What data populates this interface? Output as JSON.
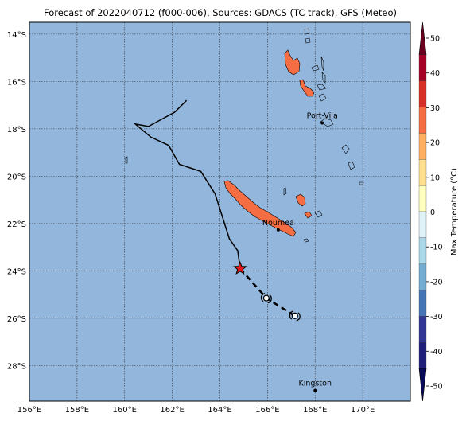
{
  "title": "Forecast of 2022040712 (f000-006), Sources: GDACS (TC track), GFS (Meteo)",
  "map": {
    "lon_range": [
      156,
      172
    ],
    "lat_range": [
      -29.5,
      -13.5
    ],
    "ocean_color": "#93b6dc",
    "gridlines": true,
    "lat_ticks": [
      {
        "value": -14,
        "label": "14°S"
      },
      {
        "value": -16,
        "label": "16°S"
      },
      {
        "value": -18,
        "label": "18°S"
      },
      {
        "value": -20,
        "label": "20°S"
      },
      {
        "value": -22,
        "label": "22°S"
      },
      {
        "value": -24,
        "label": "24°S"
      },
      {
        "value": -26,
        "label": "26°S"
      },
      {
        "value": -28,
        "label": "28°S"
      }
    ],
    "lon_ticks": [
      {
        "value": 156,
        "label": "156°E"
      },
      {
        "value": 158,
        "label": "158°E"
      },
      {
        "value": 160,
        "label": "160°E"
      },
      {
        "value": 162,
        "label": "162°E"
      },
      {
        "value": 164,
        "label": "164°E"
      },
      {
        "value": 166,
        "label": "166°E"
      },
      {
        "value": 168,
        "label": "168°E"
      },
      {
        "value": 170,
        "label": "170°E"
      }
    ],
    "cities": [
      {
        "name": "Port-Vila",
        "lon": 168.3,
        "lat": -17.75
      },
      {
        "name": "Noumea",
        "lon": 166.45,
        "lat": -22.27
      },
      {
        "name": "Kingston",
        "lon": 168.0,
        "lat": -29.05
      }
    ],
    "track_observed": [
      [
        162.6,
        -16.8
      ],
      [
        162.1,
        -17.3
      ],
      [
        161.0,
        -17.9
      ],
      [
        160.45,
        -17.8
      ],
      [
        161.1,
        -18.35
      ],
      [
        161.85,
        -18.7
      ],
      [
        162.3,
        -19.5
      ],
      [
        163.2,
        -19.8
      ],
      [
        163.8,
        -20.75
      ],
      [
        164.4,
        -22.65
      ],
      [
        164.75,
        -23.15
      ],
      [
        164.85,
        -23.9
      ]
    ],
    "track_forecast": [
      [
        164.85,
        -23.9
      ],
      [
        165.95,
        -25.15
      ],
      [
        167.15,
        -25.9
      ]
    ],
    "current_position": {
      "lon": 164.85,
      "lat": -23.9
    },
    "forecast_positions": [
      {
        "lon": 165.95,
        "lat": -25.15
      },
      {
        "lon": 167.15,
        "lat": -25.9
      }
    ]
  },
  "colorbar": {
    "label": "Max Temperature (°C)",
    "ticks": [
      50,
      40,
      30,
      20,
      10,
      0,
      -10,
      -20,
      -30,
      -40,
      -50
    ],
    "colors": [
      "#6b0020",
      "#a50026",
      "#d73027",
      "#f46d43",
      "#fdae61",
      "#fee090",
      "#ffffbf",
      "#e0f3f8",
      "#abd9e9",
      "#74add1",
      "#4575b4",
      "#313695",
      "#1f1f7a",
      "#0a0a5a"
    ],
    "land_color": "#f46d43"
  }
}
